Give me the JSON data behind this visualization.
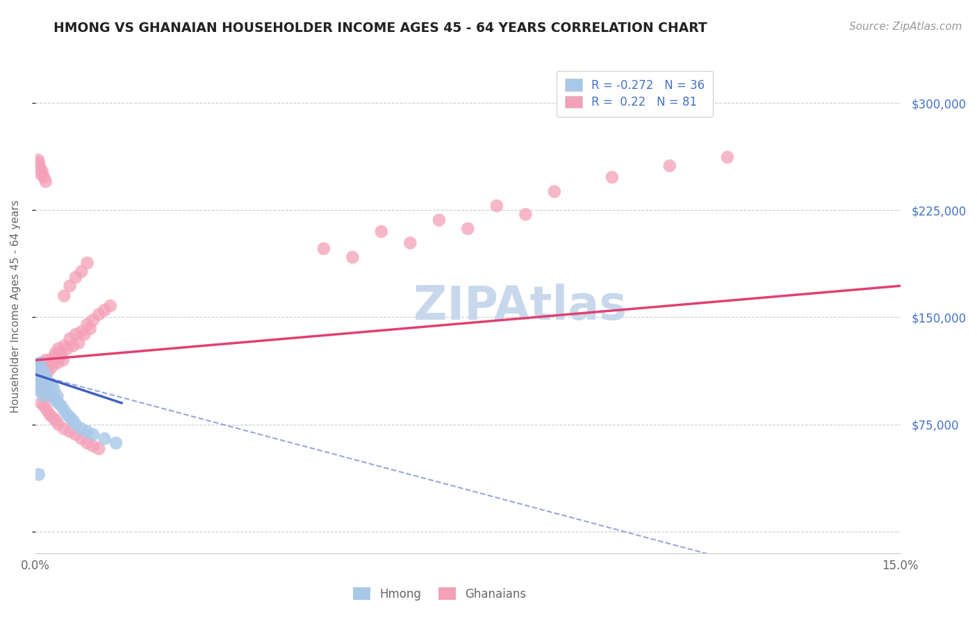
{
  "title": "HMONG VS GHANAIAN HOUSEHOLDER INCOME AGES 45 - 64 YEARS CORRELATION CHART",
  "source": "Source: ZipAtlas.com",
  "ylabel": "Householder Income Ages 45 - 64 years",
  "xlim": [
    0.0,
    0.15
  ],
  "ylim": [
    -15000,
    330000
  ],
  "hmong_R": -0.272,
  "hmong_N": 36,
  "ghanaian_R": 0.22,
  "ghanaian_N": 81,
  "hmong_color": "#a8c8e8",
  "ghanaian_color": "#f4a0b8",
  "hmong_line_color": "#4060c0",
  "ghanaian_line_color": "#e04070",
  "watermark_color": "#c8d8ec",
  "background_color": "#ffffff",
  "grid_color": "#cccccc",
  "tick_label_color": "#4472c4",
  "title_color": "#222222",
  "source_color": "#999999",
  "hmong_x": [
    0.0004,
    0.0005,
    0.0006,
    0.0007,
    0.0008,
    0.0009,
    0.001,
    0.0011,
    0.0012,
    0.0013,
    0.0014,
    0.0015,
    0.0016,
    0.0018,
    0.002,
    0.0022,
    0.0025,
    0.0028,
    0.003,
    0.0032,
    0.0035,
    0.0038,
    0.004,
    0.0045,
    0.005,
    0.0055,
    0.006,
    0.0065,
    0.007,
    0.008,
    0.009,
    0.01,
    0.012,
    0.014,
    0.0006,
    0.0008
  ],
  "hmong_y": [
    108000,
    112000,
    105000,
    100000,
    115000,
    98000,
    110000,
    105000,
    100000,
    108000,
    95000,
    112000,
    103000,
    108000,
    100000,
    105000,
    98000,
    102000,
    95000,
    100000,
    92000,
    95000,
    90000,
    88000,
    85000,
    82000,
    80000,
    78000,
    75000,
    72000,
    70000,
    68000,
    65000,
    62000,
    40000,
    118000
  ],
  "ghanaian_x": [
    0.0003,
    0.0004,
    0.0005,
    0.0006,
    0.0007,
    0.0008,
    0.0009,
    0.001,
    0.0011,
    0.0012,
    0.0013,
    0.0014,
    0.0015,
    0.0016,
    0.0018,
    0.002,
    0.0022,
    0.0025,
    0.0028,
    0.003,
    0.0032,
    0.0035,
    0.0038,
    0.004,
    0.0042,
    0.0045,
    0.0048,
    0.005,
    0.0055,
    0.006,
    0.0065,
    0.007,
    0.0075,
    0.008,
    0.0085,
    0.009,
    0.0095,
    0.01,
    0.011,
    0.012,
    0.013,
    0.0005,
    0.0006,
    0.0008,
    0.001,
    0.0012,
    0.0015,
    0.0018,
    0.002,
    0.0025,
    0.001,
    0.0015,
    0.002,
    0.0025,
    0.003,
    0.0035,
    0.004,
    0.005,
    0.006,
    0.007,
    0.008,
    0.009,
    0.01,
    0.011,
    0.005,
    0.006,
    0.007,
    0.008,
    0.009,
    0.05,
    0.06,
    0.07,
    0.08,
    0.09,
    0.1,
    0.11,
    0.12,
    0.055,
    0.065,
    0.075,
    0.085
  ],
  "ghanaian_y": [
    115000,
    110000,
    108000,
    112000,
    105000,
    115000,
    108000,
    118000,
    112000,
    105000,
    100000,
    108000,
    115000,
    110000,
    120000,
    118000,
    112000,
    120000,
    115000,
    118000,
    122000,
    125000,
    118000,
    128000,
    122000,
    125000,
    120000,
    130000,
    128000,
    135000,
    130000,
    138000,
    132000,
    140000,
    138000,
    145000,
    142000,
    148000,
    152000,
    155000,
    158000,
    260000,
    258000,
    255000,
    250000,
    252000,
    248000,
    245000,
    98000,
    95000,
    90000,
    88000,
    85000,
    82000,
    80000,
    78000,
    75000,
    72000,
    70000,
    68000,
    65000,
    62000,
    60000,
    58000,
    165000,
    172000,
    178000,
    182000,
    188000,
    198000,
    210000,
    218000,
    228000,
    238000,
    248000,
    256000,
    262000,
    192000,
    202000,
    212000,
    222000
  ]
}
